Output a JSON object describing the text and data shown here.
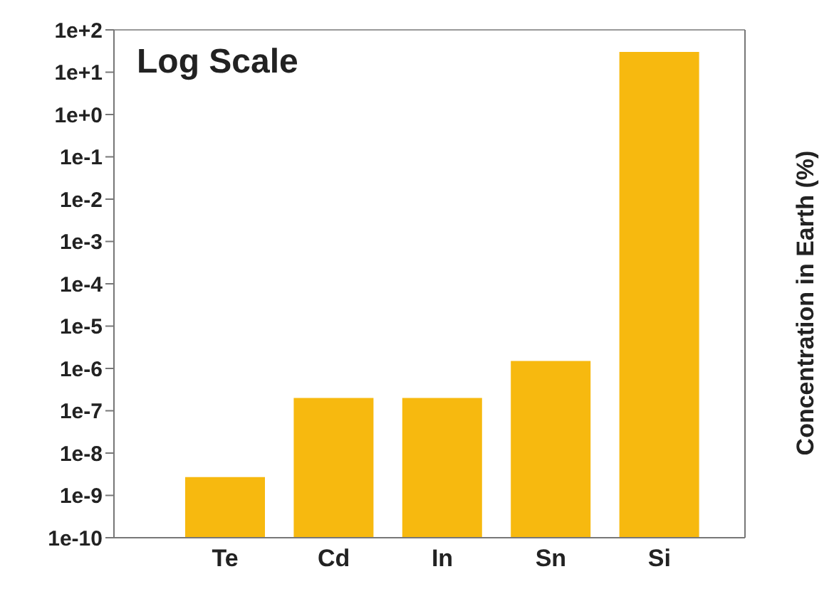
{
  "chart_data": {
    "type": "bar",
    "title": "Log Scale",
    "ylabel": "Concentration in Earth (%)",
    "categories": [
      "Te",
      "Cd",
      "In",
      "Sn",
      "Si"
    ],
    "values": [
      2.7e-09,
      2e-07,
      2e-07,
      1.5e-06,
      30
    ],
    "color": "#f7b90f",
    "log": true,
    "ylim": [
      1e-10,
      100
    ],
    "yticks": [
      {
        "value": 1e-10,
        "label": "1e-10"
      },
      {
        "value": 1e-09,
        "label": "1e-9"
      },
      {
        "value": 1e-08,
        "label": "1e-8"
      },
      {
        "value": 1e-07,
        "label": "1e-7"
      },
      {
        "value": 1e-06,
        "label": "1e-6"
      },
      {
        "value": 1e-05,
        "label": "1e-5"
      },
      {
        "value": 0.0001,
        "label": "1e-4"
      },
      {
        "value": 0.001,
        "label": "1e-3"
      },
      {
        "value": 0.01,
        "label": "1e-2"
      },
      {
        "value": 0.1,
        "label": "1e-1"
      },
      {
        "value": 1,
        "label": "1e+0"
      },
      {
        "value": 10,
        "label": "1e+1"
      },
      {
        "value": 100,
        "label": "1e+2"
      }
    ]
  }
}
